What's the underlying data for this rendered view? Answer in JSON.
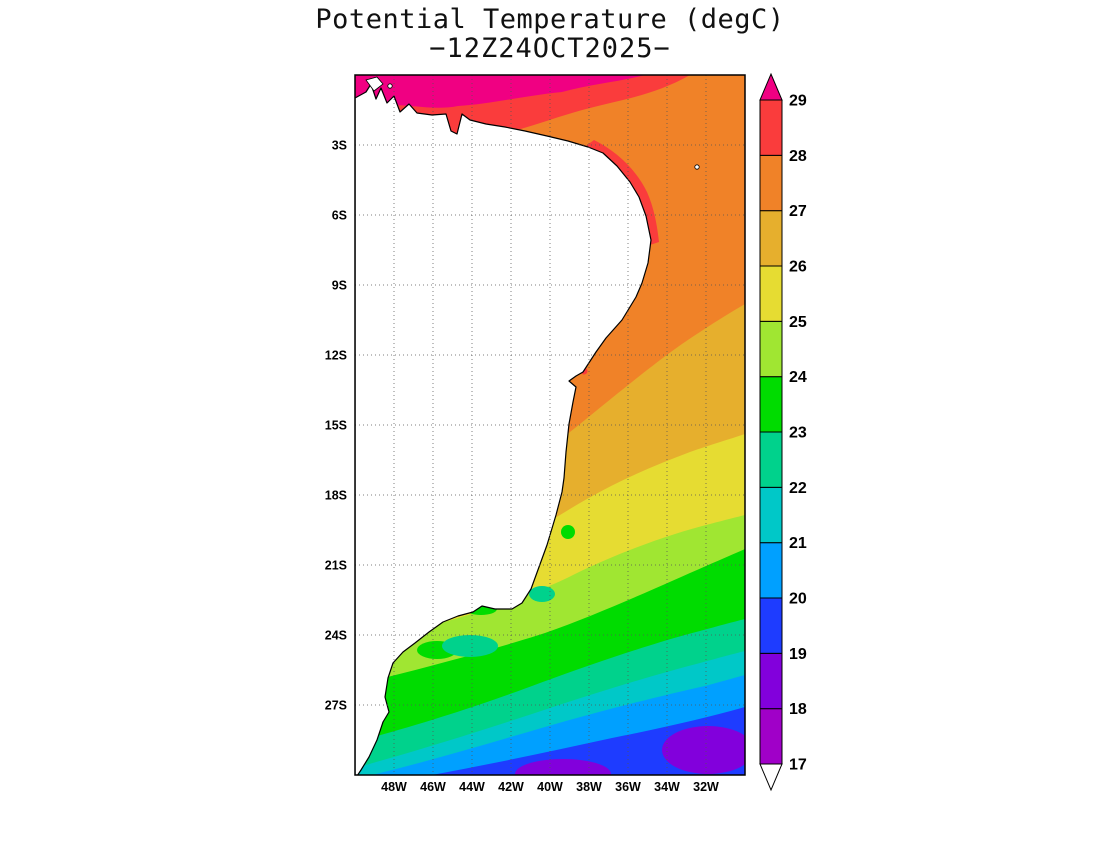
{
  "title": "Potential Temperature (degC)",
  "subtitle": "−12Z24OCT2025−",
  "map": {
    "land_color": "#ffffff",
    "coastline_color": "#000000"
  },
  "chart_data": {
    "type": "heatmap",
    "subtype": "filled-contour-map",
    "title": "Potential Temperature (degC)",
    "valid_time": "12Z24OCT2025",
    "units": "degC",
    "x_axis": {
      "label": "longitude",
      "ticks": [
        "48W",
        "46W",
        "44W",
        "42W",
        "40W",
        "38W",
        "36W",
        "34W",
        "32W"
      ],
      "range_deg_west": [
        50,
        30
      ]
    },
    "y_axis": {
      "label": "latitude",
      "ticks": [
        "3S",
        "6S",
        "9S",
        "12S",
        "15S",
        "18S",
        "21S",
        "24S",
        "27S"
      ],
      "range_deg_south": [
        0,
        30
      ]
    },
    "colorbar": {
      "levels": [
        17,
        18,
        19,
        20,
        21,
        22,
        23,
        24,
        25,
        26,
        27,
        28,
        29
      ],
      "band_colors": [
        "#a000c8",
        "#8200dc",
        "#1e3cff",
        "#00a0ff",
        "#00c8c8",
        "#00d28c",
        "#00dc00",
        "#a0e632",
        "#e6dc32",
        "#e6af2d",
        "#f08228",
        "#fa3c3c"
      ],
      "above_color": "#f00082",
      "below_color": "#ffffff"
    },
    "field_pattern": "Ocean potential temperature decreases from above 29 degC along the equatorial coast to 18-19 degC near 30S; isotherms tilt so cooler water reaches farther north on the eastern side; small cool patches hug the coast between 19S and 25S; land (Brazil) is blank white.",
    "sample_points": [
      {
        "lon": "36W",
        "lat": "2S",
        "approx_degC": 27.5
      },
      {
        "lon": "32W",
        "lat": "6S",
        "approx_degC": 27.5
      },
      {
        "lon": "36W",
        "lat": "12S",
        "approx_degC": 26.5
      },
      {
        "lon": "34W",
        "lat": "16S",
        "approx_degC": 25.5
      },
      {
        "lon": "38W",
        "lat": "18S",
        "approx_degC": 25.5
      },
      {
        "lon": "36W",
        "lat": "20S",
        "approx_degC": 24.5
      },
      {
        "lon": "40W",
        "lat": "22S",
        "approx_degC": 24.5
      },
      {
        "lon": "34W",
        "lat": "24S",
        "approx_degC": 23.5
      },
      {
        "lon": "44W",
        "lat": "25S",
        "approx_degC": 22.5
      },
      {
        "lon": "40W",
        "lat": "27S",
        "approx_degC": 21.5
      },
      {
        "lon": "46W",
        "lat": "28S",
        "approx_degC": 21.5
      },
      {
        "lon": "40W",
        "lat": "29S",
        "approx_degC": 19.5
      },
      {
        "lon": "33W",
        "lat": "29S",
        "approx_degC": 18.5
      }
    ]
  }
}
